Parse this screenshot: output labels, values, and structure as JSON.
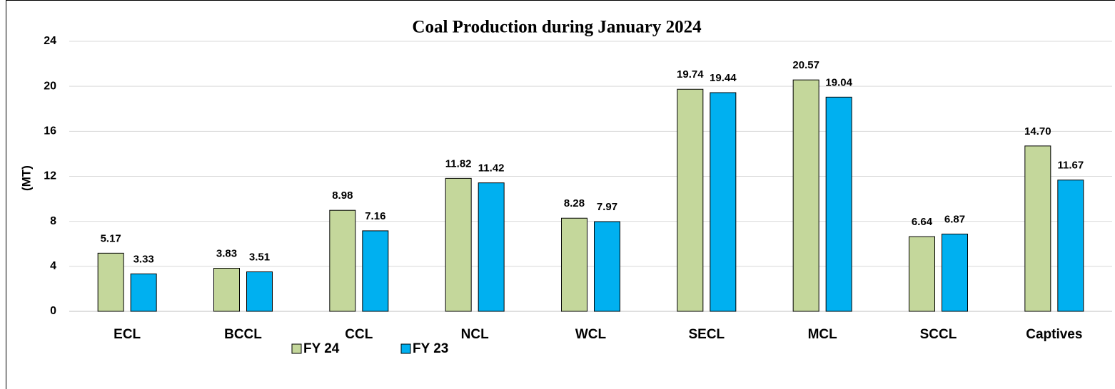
{
  "chart_data": {
    "type": "bar",
    "title": "Coal Production during January 2024",
    "y_label": "(MT)",
    "categories": [
      "ECL",
      "BCCL",
      "CCL",
      "NCL",
      "WCL",
      "SECL",
      "MCL",
      "SCCL",
      "Captives"
    ],
    "series": [
      {
        "name": "FY 24",
        "color": "#c4d79b",
        "values": [
          5.17,
          3.83,
          8.98,
          11.82,
          8.28,
          19.74,
          20.57,
          6.64,
          14.7
        ],
        "value_labels": [
          "5.17",
          "3.83",
          "8.98",
          "11.82",
          "8.28",
          "19.74",
          "20.57",
          "6.64",
          "14.70"
        ]
      },
      {
        "name": "FY 23",
        "color": "#00b0f0",
        "values": [
          3.33,
          3.51,
          7.16,
          11.42,
          7.97,
          19.44,
          19.04,
          6.87,
          11.67
        ],
        "value_labels": [
          "3.33",
          "3.51",
          "7.16",
          "11.42",
          "7.97",
          "19.44",
          "19.04",
          "6.87",
          "11.67"
        ]
      }
    ],
    "ylim": [
      0,
      24
    ],
    "yticks": [
      0,
      4,
      8,
      12,
      16,
      20,
      24
    ],
    "grid": true,
    "legend": "bottom"
  }
}
